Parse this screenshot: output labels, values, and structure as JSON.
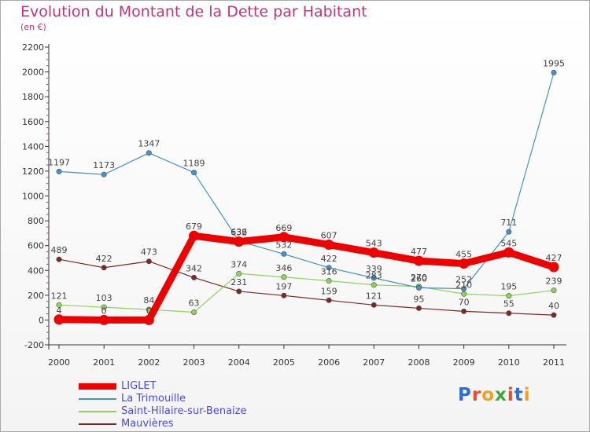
{
  "chart_data": {
    "type": "line",
    "title": "Evolution du Montant de la Dette par Habitant",
    "subtitle": "(en €)",
    "x": [
      "2000",
      "2001",
      "2002",
      "2003",
      "2004",
      "2005",
      "2006",
      "2007",
      "2008",
      "2009",
      "2010",
      "2011"
    ],
    "ylim": [
      -200,
      2200
    ],
    "yticks": [
      -200,
      0,
      200,
      400,
      600,
      800,
      1000,
      1200,
      1400,
      1600,
      1800,
      2000,
      2200
    ],
    "grid": false,
    "legend_position": "bottom-left",
    "series": [
      {
        "name": "LIGLET",
        "color": "#ee0000",
        "values": [
          4,
          0,
          0,
          679,
          632,
          669,
          607,
          543,
          477,
          455,
          545,
          427
        ],
        "labels": [
          "4",
          "0",
          "0",
          "679",
          "632",
          "669",
          "607",
          "543",
          "477",
          "455",
          "545",
          "427"
        ]
      },
      {
        "name": "La Trimouille",
        "color": "#4a90c8",
        "values": [
          1197,
          1173,
          1347,
          1189,
          636,
          532,
          422,
          339,
          260,
          252,
          711,
          1995
        ],
        "labels": [
          "1197",
          "1173",
          "1347",
          "1189",
          "636",
          "532",
          "422",
          "339",
          "260",
          "252",
          "711",
          "1995"
        ]
      },
      {
        "name": "Saint-Hilaire-sur-Benaize",
        "color": "#8fd35a",
        "values": [
          121,
          103,
          84,
          63,
          374,
          346,
          316,
          283,
          270,
          210,
          195,
          239
        ],
        "labels": [
          "121",
          "103",
          "84",
          "63",
          "374",
          "346",
          "316",
          "283",
          "270",
          "210",
          "195",
          "239"
        ]
      },
      {
        "name": "Mauvières",
        "color": "#7a2a2a",
        "values": [
          489,
          422,
          473,
          342,
          231,
          197,
          159,
          121,
          95,
          70,
          55,
          40
        ],
        "labels": [
          "489",
          "422",
          "473",
          "342",
          "231",
          "197",
          "159",
          "121",
          "95",
          "70",
          "55",
          "40"
        ]
      }
    ]
  },
  "brand": {
    "letters": [
      "P",
      "r",
      "o",
      "x",
      "i",
      "t",
      "i"
    ],
    "colors": [
      "#2a6fd6",
      "#e84a2a",
      "#f0a020",
      "#3aa83a",
      "#e84a2a",
      "#2a6fd6",
      "#f0a020"
    ]
  }
}
